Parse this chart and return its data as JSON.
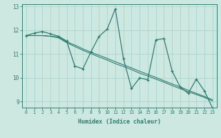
{
  "x": [
    0,
    1,
    2,
    3,
    4,
    5,
    6,
    7,
    8,
    9,
    10,
    11,
    12,
    13,
    14,
    15,
    16,
    17,
    18,
    19,
    20,
    21,
    22,
    23
  ],
  "y_zigzag": [
    11.78,
    11.88,
    11.95,
    11.85,
    11.75,
    11.55,
    10.5,
    10.38,
    11.1,
    11.75,
    12.05,
    12.9,
    10.82,
    9.55,
    10.0,
    9.92,
    11.6,
    11.65,
    10.3,
    9.62,
    9.35,
    9.95,
    9.45,
    8.73
  ],
  "y_trend1": [
    11.78,
    11.78,
    11.78,
    11.75,
    11.72,
    11.52,
    11.38,
    11.22,
    11.08,
    10.95,
    10.82,
    10.68,
    10.55,
    10.42,
    10.28,
    10.15,
    10.02,
    9.88,
    9.75,
    9.62,
    9.48,
    9.35,
    9.22,
    9.08
  ],
  "y_trend2": [
    11.78,
    11.78,
    11.78,
    11.75,
    11.68,
    11.48,
    11.32,
    11.16,
    11.02,
    10.88,
    10.75,
    10.6,
    10.48,
    10.35,
    10.2,
    10.08,
    9.95,
    9.82,
    9.68,
    9.55,
    9.42,
    9.3,
    9.18,
    9.03
  ],
  "color": "#2e7b6e",
  "bg_color": "#cce8e0",
  "grid_color": "#aad4cc",
  "xlabel": "Humidex (Indice chaleur)",
  "xlim": [
    -0.5,
    23.5
  ],
  "ylim": [
    8.75,
    13.1
  ],
  "yticks": [
    9,
    10,
    11,
    12,
    13
  ],
  "xticks": [
    0,
    1,
    2,
    3,
    4,
    5,
    6,
    7,
    8,
    9,
    10,
    11,
    12,
    13,
    14,
    15,
    16,
    17,
    18,
    19,
    20,
    21,
    22,
    23
  ]
}
